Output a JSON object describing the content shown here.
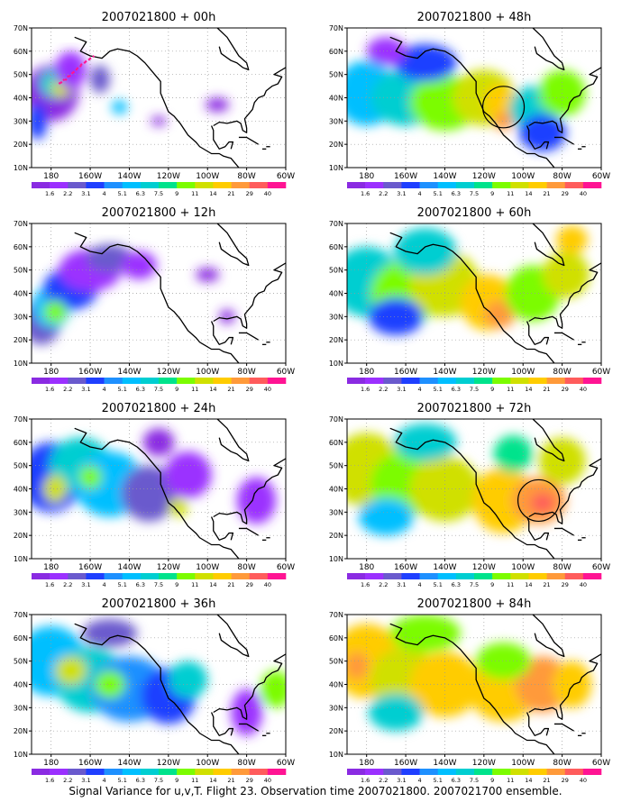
{
  "figure": {
    "caption": "Signal Variance for u,v,T. Flight 23. Observation time 2007021800. 2007021700 ensemble."
  },
  "axes": {
    "lat_ticks": [
      "70N",
      "60N",
      "50N",
      "40N",
      "30N",
      "20N",
      "10N"
    ],
    "lon_ticks": [
      "180",
      "160W",
      "140W",
      "120W",
      "100W",
      "80W",
      "60W"
    ]
  },
  "colorbar": {
    "labels": [
      "1.6",
      "2.2",
      "3.1",
      "4",
      "5.1",
      "6.3",
      "7.5",
      "9",
      "11",
      "14",
      "21",
      "29",
      "40"
    ],
    "colors": [
      "#8a2be2",
      "#9b30ff",
      "#6a5acd",
      "#1f3fff",
      "#1e90ff",
      "#00bfff",
      "#00ced1",
      "#00e38c",
      "#7cfc00",
      "#d0e000",
      "#ffcc00",
      "#ff9a3a",
      "#ff5c5c",
      "#ff1493"
    ]
  },
  "panels": [
    {
      "title": "2007021800 + 00h",
      "intensity": 0.15,
      "circle": null
    },
    {
      "title": "2007021800 + 48h",
      "intensity": 0.55,
      "circle": {
        "lon": -110,
        "lat": 36
      }
    },
    {
      "title": "2007021800 + 12h",
      "intensity": 0.28,
      "circle": null
    },
    {
      "title": "2007021800 + 60h",
      "intensity": 0.62,
      "circle": null
    },
    {
      "title": "2007021800 + 24h",
      "intensity": 0.38,
      "circle": null
    },
    {
      "title": "2007021800 + 72h",
      "intensity": 0.7,
      "circle": {
        "lon": -92,
        "lat": 35
      }
    },
    {
      "title": "2007021800 + 36h",
      "intensity": 0.46,
      "circle": null
    },
    {
      "title": "2007021800 + 84h",
      "intensity": 0.78,
      "circle": null
    }
  ]
}
